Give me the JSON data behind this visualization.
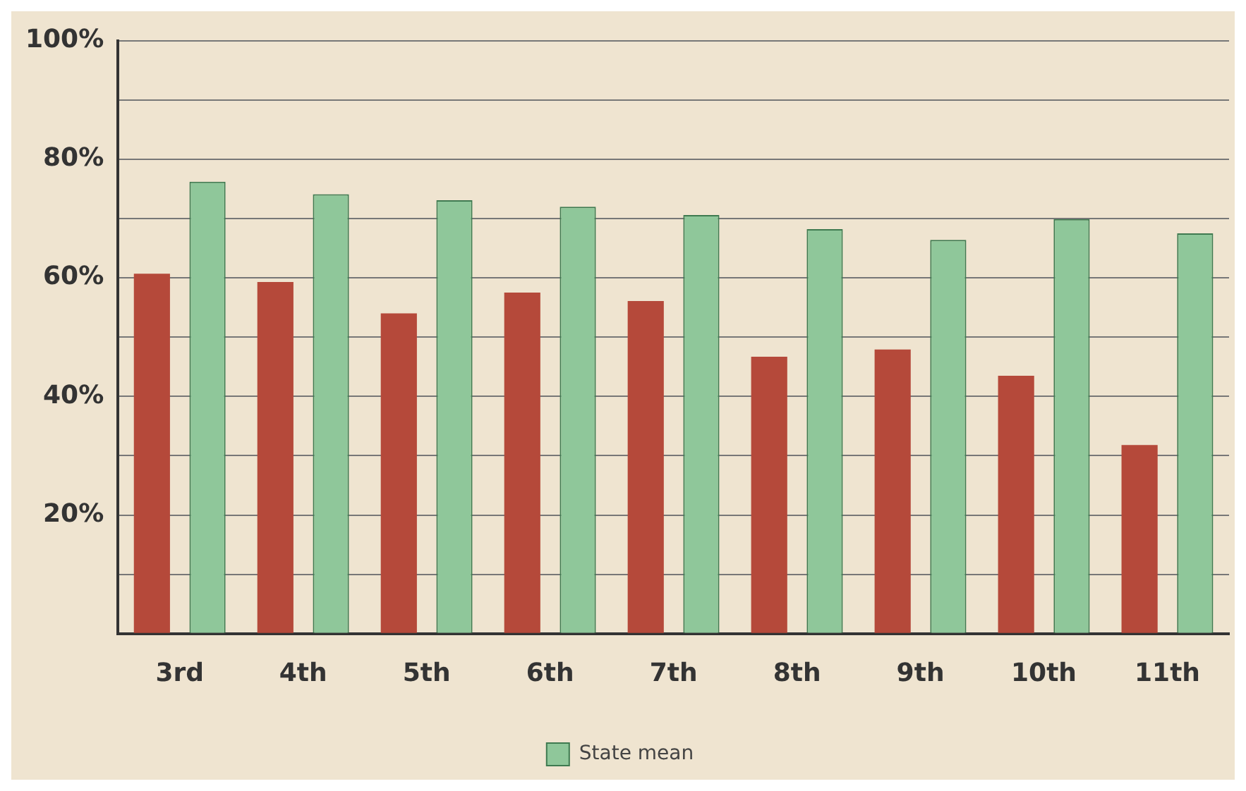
{
  "chart_data": {
    "type": "bar",
    "categories": [
      "3rd",
      "4th",
      "5th",
      "6th",
      "7th",
      "8th",
      "9th",
      "10th",
      "11th"
    ],
    "series": [
      {
        "color": "#b5493a",
        "values": [
          60.7,
          59.3,
          54.0,
          57.5,
          56.1,
          46.7,
          47.9,
          43.5,
          31.8
        ]
      },
      {
        "name": "State mean",
        "color": "#8fc79a",
        "values": [
          76.2,
          74.1,
          73.1,
          72.0,
          70.6,
          68.2,
          66.4,
          69.9,
          67.5
        ]
      }
    ],
    "ylim": [
      0,
      100
    ],
    "yticks": [
      {
        "value": 0,
        "label": null
      },
      {
        "value": 10,
        "label": null
      },
      {
        "value": 20,
        "label": "20%"
      },
      {
        "value": 30,
        "label": null
      },
      {
        "value": 40,
        "label": "40%"
      },
      {
        "value": 50,
        "label": null
      },
      {
        "value": 60,
        "label": "60%"
      },
      {
        "value": 70,
        "label": null
      },
      {
        "value": 80,
        "label": "80%"
      },
      {
        "value": 90,
        "label": null
      },
      {
        "value": 100,
        "label": "100%"
      }
    ],
    "grid": "y",
    "legend": "bottom"
  }
}
